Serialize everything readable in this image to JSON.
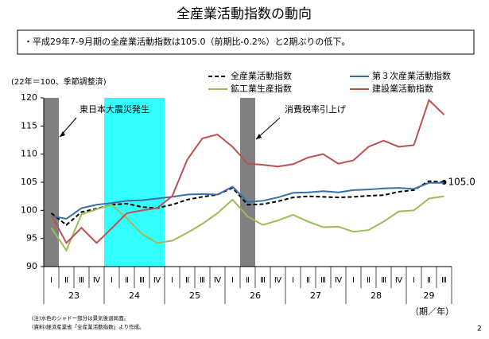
{
  "chart_data": {
    "type": "line",
    "title": "全産業活動指数の動向",
    "summary": "・平成29年7-9月期の全産業活動指数は105.0（前期比-0.2%）と2期ぶりの低下。",
    "y_label": "(22年＝100、季節調整済)",
    "x_label": "（期／年）",
    "categories": [
      "Ⅰ",
      "Ⅱ",
      "Ⅲ",
      "Ⅳ",
      "Ⅰ",
      "Ⅱ",
      "Ⅲ",
      "Ⅳ",
      "Ⅰ",
      "Ⅱ",
      "Ⅲ",
      "Ⅳ",
      "Ⅰ",
      "Ⅱ",
      "Ⅲ",
      "Ⅳ",
      "Ⅰ",
      "Ⅱ",
      "Ⅲ",
      "Ⅳ",
      "Ⅰ",
      "Ⅱ",
      "Ⅲ",
      "Ⅳ",
      "Ⅰ",
      "Ⅱ",
      "Ⅲ"
    ],
    "years": [
      "23",
      "24",
      "25",
      "26",
      "27",
      "28",
      "29"
    ],
    "ylim": [
      90,
      120
    ],
    "yticks": [
      90,
      95,
      100,
      105,
      110,
      115,
      120
    ],
    "series": [
      {
        "name": "全産業活動指数",
        "color": "#000000",
        "dashed": true,
        "values": [
          99.5,
          97.4,
          99.7,
          100.3,
          101.0,
          101.2,
          100.6,
          100.4,
          101.0,
          101.9,
          102.4,
          102.8,
          104.0,
          101.0,
          101.1,
          101.6,
          102.3,
          102.5,
          102.4,
          102.3,
          102.4,
          102.6,
          102.7,
          103.3,
          103.6,
          105.2,
          105.0
        ],
        "value_labels": {
          "26": "105.0"
        }
      },
      {
        "name": "第３次産業活動指数",
        "color": "#3b6ea5",
        "values": [
          99.0,
          98.5,
          100.4,
          101.0,
          101.3,
          101.7,
          101.8,
          102.1,
          102.4,
          102.8,
          102.9,
          102.8,
          104.2,
          101.5,
          101.7,
          102.3,
          103.1,
          103.2,
          103.4,
          103.2,
          103.6,
          103.7,
          103.9,
          104.0,
          103.8,
          104.9,
          104.9
        ]
      },
      {
        "name": "鉱工業生産指数",
        "color": "#9bbb59",
        "values": [
          96.9,
          92.9,
          99.3,
          100.2,
          101.0,
          98.6,
          95.8,
          94.2,
          94.6,
          96.0,
          97.6,
          99.5,
          101.9,
          98.9,
          97.4,
          98.2,
          99.2,
          98.0,
          97.0,
          97.1,
          96.2,
          96.5,
          98.0,
          99.8,
          100.0,
          102.1,
          102.5
        ]
      },
      {
        "name": "建設業活動指数",
        "color": "#c0504d",
        "values": [
          99.2,
          94.2,
          96.9,
          94.2,
          96.8,
          99.5,
          100.0,
          100.4,
          102.5,
          109.0,
          112.8,
          113.5,
          111.3,
          108.3,
          108.1,
          107.8,
          108.2,
          109.4,
          110.0,
          108.3,
          108.9,
          111.3,
          112.4,
          111.3,
          111.6,
          119.6,
          117.0
        ]
      }
    ],
    "shaded_periods": [
      {
        "start": 0,
        "end": 0,
        "color": "#808080"
      },
      {
        "start": 4,
        "end": 7,
        "color": "#33ffff"
      },
      {
        "start": 13,
        "end": 13,
        "color": "#808080"
      }
    ],
    "annotations": [
      {
        "text": "東日本大震災発生",
        "period": 0
      },
      {
        "text": "消費税率引上げ",
        "period": 2
      }
    ],
    "notes": [
      "(注)水色のシャドー部分は景気後退局面。",
      "(資料)経済産業省「全産業活動指数」より作成。"
    ],
    "page_number": "2"
  }
}
